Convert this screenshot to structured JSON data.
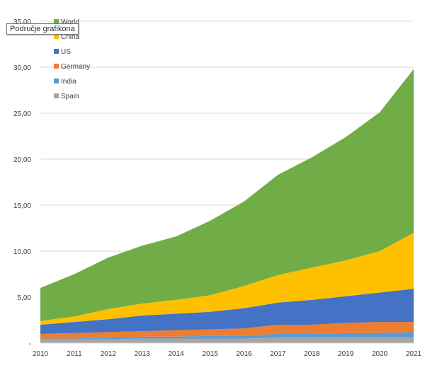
{
  "tooltip": {
    "text": "Područje grafikona"
  },
  "chart_data": {
    "type": "area",
    "stacked": true,
    "x": [
      "2010",
      "2011",
      "2012",
      "2013",
      "2014",
      "2015",
      "2016",
      "2017",
      "2018",
      "2019",
      "2020",
      "2021"
    ],
    "ylim": [
      0,
      35
    ],
    "yticks": [
      {
        "value": 0,
        "label": "-"
      },
      {
        "value": 5,
        "label": "5,00"
      },
      {
        "value": 10,
        "label": "10,00"
      },
      {
        "value": 15,
        "label": "15,00"
      },
      {
        "value": 20,
        "label": "20,00"
      },
      {
        "value": 25,
        "label": "25,00"
      },
      {
        "value": 30,
        "label": "30,00"
      },
      {
        "value": 35,
        "label": "35,00"
      }
    ],
    "grid": true,
    "legend_position": "top-left",
    "series": [
      {
        "name": "Spain",
        "color": "#a5a5a5",
        "values": [
          0.4,
          0.4,
          0.4,
          0.5,
          0.5,
          0.5,
          0.5,
          0.6,
          0.6,
          0.6,
          0.6,
          0.6
        ]
      },
      {
        "name": "India",
        "color": "#5b9bd5",
        "values": [
          0.1,
          0.1,
          0.2,
          0.2,
          0.2,
          0.3,
          0.3,
          0.4,
          0.4,
          0.5,
          0.5,
          0.6
        ]
      },
      {
        "name": "Germany",
        "color": "#ed7d31",
        "values": [
          0.5,
          0.6,
          0.6,
          0.6,
          0.7,
          0.7,
          0.8,
          1.0,
          1.0,
          1.1,
          1.2,
          1.1
        ]
      },
      {
        "name": "US",
        "color": "#4472c4",
        "values": [
          1.0,
          1.2,
          1.4,
          1.7,
          1.8,
          1.9,
          2.2,
          2.4,
          2.7,
          2.9,
          3.2,
          3.6
        ]
      },
      {
        "name": "China",
        "color": "#ffc000",
        "values": [
          0.4,
          0.6,
          1.1,
          1.3,
          1.5,
          1.8,
          2.4,
          3.0,
          3.5,
          3.9,
          4.5,
          6.1
        ]
      },
      {
        "name": "World",
        "color": "#70ad47",
        "values": [
          3.6,
          4.6,
          5.6,
          6.3,
          6.9,
          8.1,
          9.2,
          10.9,
          12.0,
          13.4,
          15.1,
          17.8
        ]
      }
    ]
  }
}
